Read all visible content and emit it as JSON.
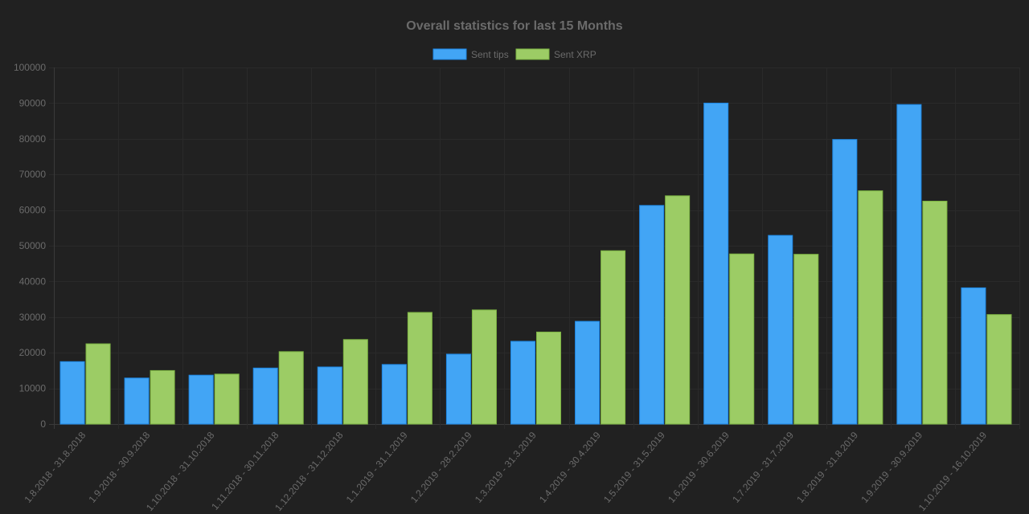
{
  "chart_data": {
    "type": "bar",
    "title": "Overall statistics for last 15 Months",
    "categories": [
      "1.8.2018 - 31.8.2018",
      "1.9.2018 - 30.9.2018",
      "1.10.2018 - 31.10.2018",
      "1.11.2018 - 30.11.2018",
      "1.12.2018 - 31.12.2018",
      "1.1.2019 - 31.1.2019",
      "1.2.2019 - 28.2.2019",
      "1.3.2019 - 31.3.2019",
      "1.4.2019 - 30.4.2019",
      "1.5.2019 - 31.5.2019",
      "1.6.2019 - 30.6.2019",
      "1.7.2019 - 31.7.2019",
      "1.8.2019 - 31.8.2019",
      "1.9.2019 - 30.9.2019",
      "1.10.2019 - 16.10.2019"
    ],
    "series": [
      {
        "name": "Sent tips",
        "color": "#42a5f5",
        "border_color": "#1e88e5",
        "values": [
          17500,
          12900,
          13700,
          15700,
          16000,
          16700,
          19600,
          23200,
          28800,
          61300,
          90000,
          52900,
          79800,
          89600,
          38200
        ]
      },
      {
        "name": "Sent XRP",
        "color": "#9ccc65",
        "border_color": "#7cb342",
        "values": [
          22500,
          15000,
          14000,
          20300,
          23700,
          31300,
          32000,
          25800,
          48600,
          64000,
          47700,
          47600,
          65400,
          62500,
          30700
        ]
      }
    ],
    "yticks": [
      0,
      10000,
      20000,
      30000,
      40000,
      50000,
      60000,
      70000,
      80000,
      90000,
      100000
    ],
    "ylim": [
      0,
      100000
    ],
    "grid": true,
    "legend_position": "top"
  }
}
